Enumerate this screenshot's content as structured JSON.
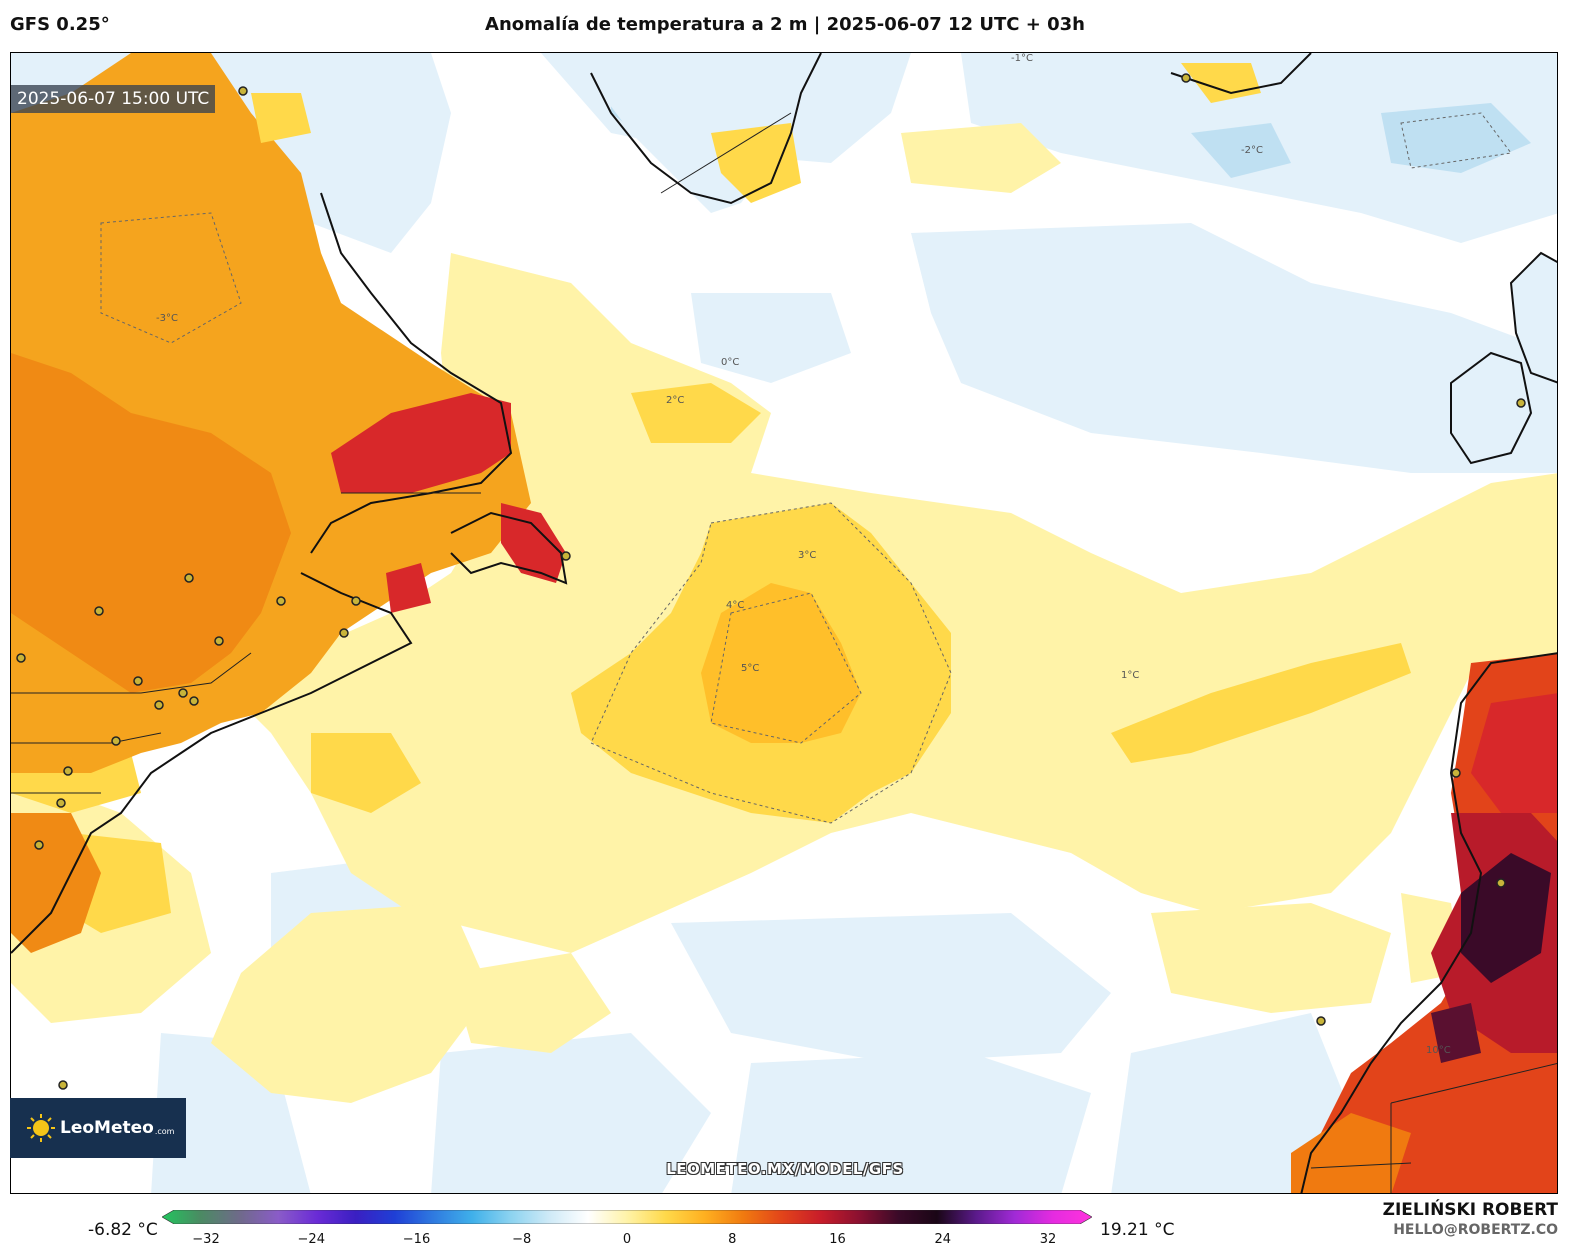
{
  "header": {
    "model": "GFS 0.25°",
    "title": "Anomalía de temperatura a 2 m | 2025-06-07 12 UTC + 03h"
  },
  "map": {
    "valid_time": "2025-06-07 15:00 UTC",
    "source_url": "LEOMETEO.MX/MODEL/GFS",
    "logo": {
      "brand": "LeoMeteo",
      "tld": ".com"
    },
    "contour_labels": [
      "-3°C",
      "-2°C",
      "-1°C",
      "0°C",
      "1°C",
      "2°C",
      "3°C",
      "4°C",
      "5°C",
      "10°C"
    ]
  },
  "legend": {
    "min_label": "-6.82 °C",
    "max_label": "19.21 °C",
    "ticks": [
      "−32",
      "−24",
      "−16",
      "−8",
      "0",
      "8",
      "16",
      "24",
      "32"
    ],
    "colors": [
      "#22c55e",
      "#4b8a63",
      "#6f6a8a",
      "#8a5cc8",
      "#6a2bd6",
      "#3a1fc2",
      "#1f3fd6",
      "#2f7ae0",
      "#3fb0ea",
      "#8cd3f0",
      "#cfeaf7",
      "#ffffff",
      "#fff3a8",
      "#ffd94a",
      "#ffb020",
      "#f07a10",
      "#e2441a",
      "#c81d2a",
      "#8a1030",
      "#3a0a28",
      "#1a0616",
      "#5a1a8a",
      "#a02ad6",
      "#e52be0",
      "#ff33dd"
    ]
  },
  "author": {
    "name": "ZIELIŃSKI ROBERT",
    "email": "HELLO@ROBERTZ.CO"
  },
  "palette": {
    "land_hot": "#f08a14",
    "land_very_hot": "#d8282a",
    "land_extreme": "#3a0a28",
    "sea_warm": "#fff3a8",
    "sea_warmer": "#ffd94a",
    "sea_cool": "#e3f1fa",
    "sea_cooler": "#bfe0f2"
  }
}
